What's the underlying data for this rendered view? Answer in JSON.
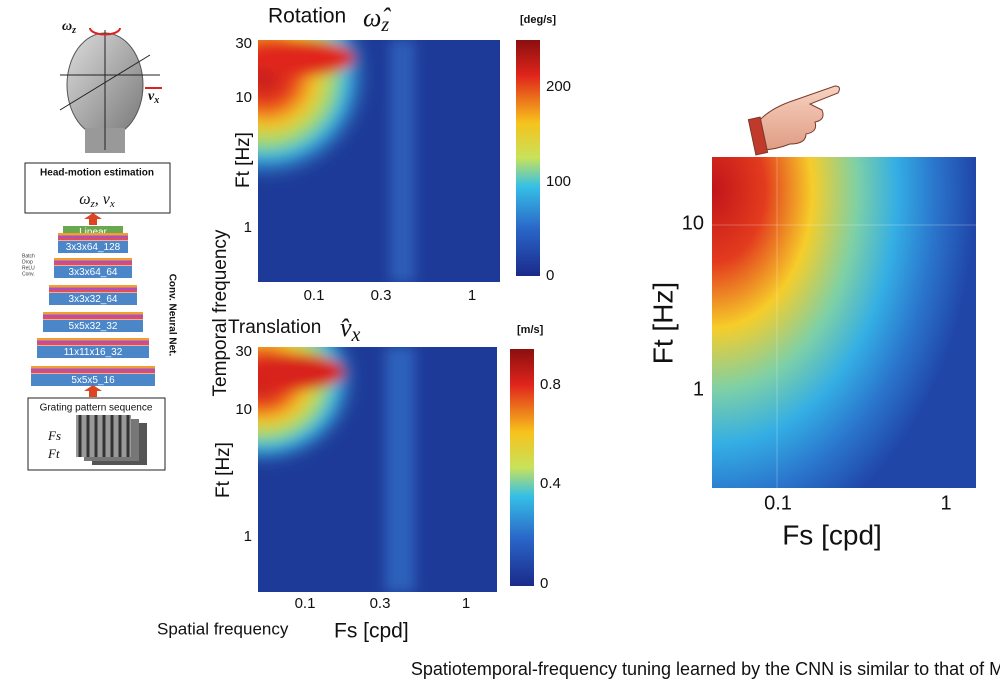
{
  "head": {
    "omega": "ω",
    "omega_sub": "z",
    "v": "v",
    "v_sub": "x"
  },
  "estimation": {
    "title": "Head-motion estimation",
    "omega": "ω",
    "omega_sub": "z",
    "separator": ", ",
    "v": "v",
    "v_sub": "x"
  },
  "network": {
    "layers": [
      "Linear",
      "3x3x64_128",
      "3x3x64_64",
      "3x3x32_64",
      "5x5x32_32",
      "11x11x16_32",
      "5x5x5_16"
    ],
    "side_labels": [
      "Batch",
      "Drop",
      "ReLU",
      "Conv."
    ],
    "label": "Conv. Neural Net."
  },
  "input": {
    "title": "Grating pattern sequence",
    "fs": "Fs",
    "ft": "Ft"
  },
  "rotation": {
    "title": "Rotation",
    "symbol": "ω̂",
    "symbol_sub": "z",
    "unit": "[deg/s]",
    "yticks": [
      "30",
      "10",
      "1"
    ],
    "xticks": [
      "0.1",
      "0.3",
      "1"
    ],
    "cbar_ticks": [
      "200",
      "100",
      "0"
    ],
    "ylabel": "Ft [Hz]"
  },
  "translation": {
    "title": "Translation",
    "symbol": "v̂",
    "symbol_sub": "x",
    "unit": "[m/s]",
    "yticks": [
      "30",
      "10",
      "1"
    ],
    "xticks": [
      "0.1",
      "0.3",
      "1"
    ],
    "cbar_ticks": [
      "0.8",
      "0.4",
      "0"
    ],
    "ylabel": "Ft [Hz]"
  },
  "shared_ylabel": "Temporal frequency",
  "shared_xlabel": {
    "text": "Spatial frequency",
    "unit": "Fs [cpd]"
  },
  "mfr": {
    "yticks": [
      "10",
      "1"
    ],
    "xticks": [
      "0.1",
      "1"
    ],
    "ylabel": "Ft [Hz]",
    "xlabel": "Fs [cpd]"
  },
  "caption": "Spatiotemporal-frequency tuning learned by the CNN is similar to that of MFR."
}
